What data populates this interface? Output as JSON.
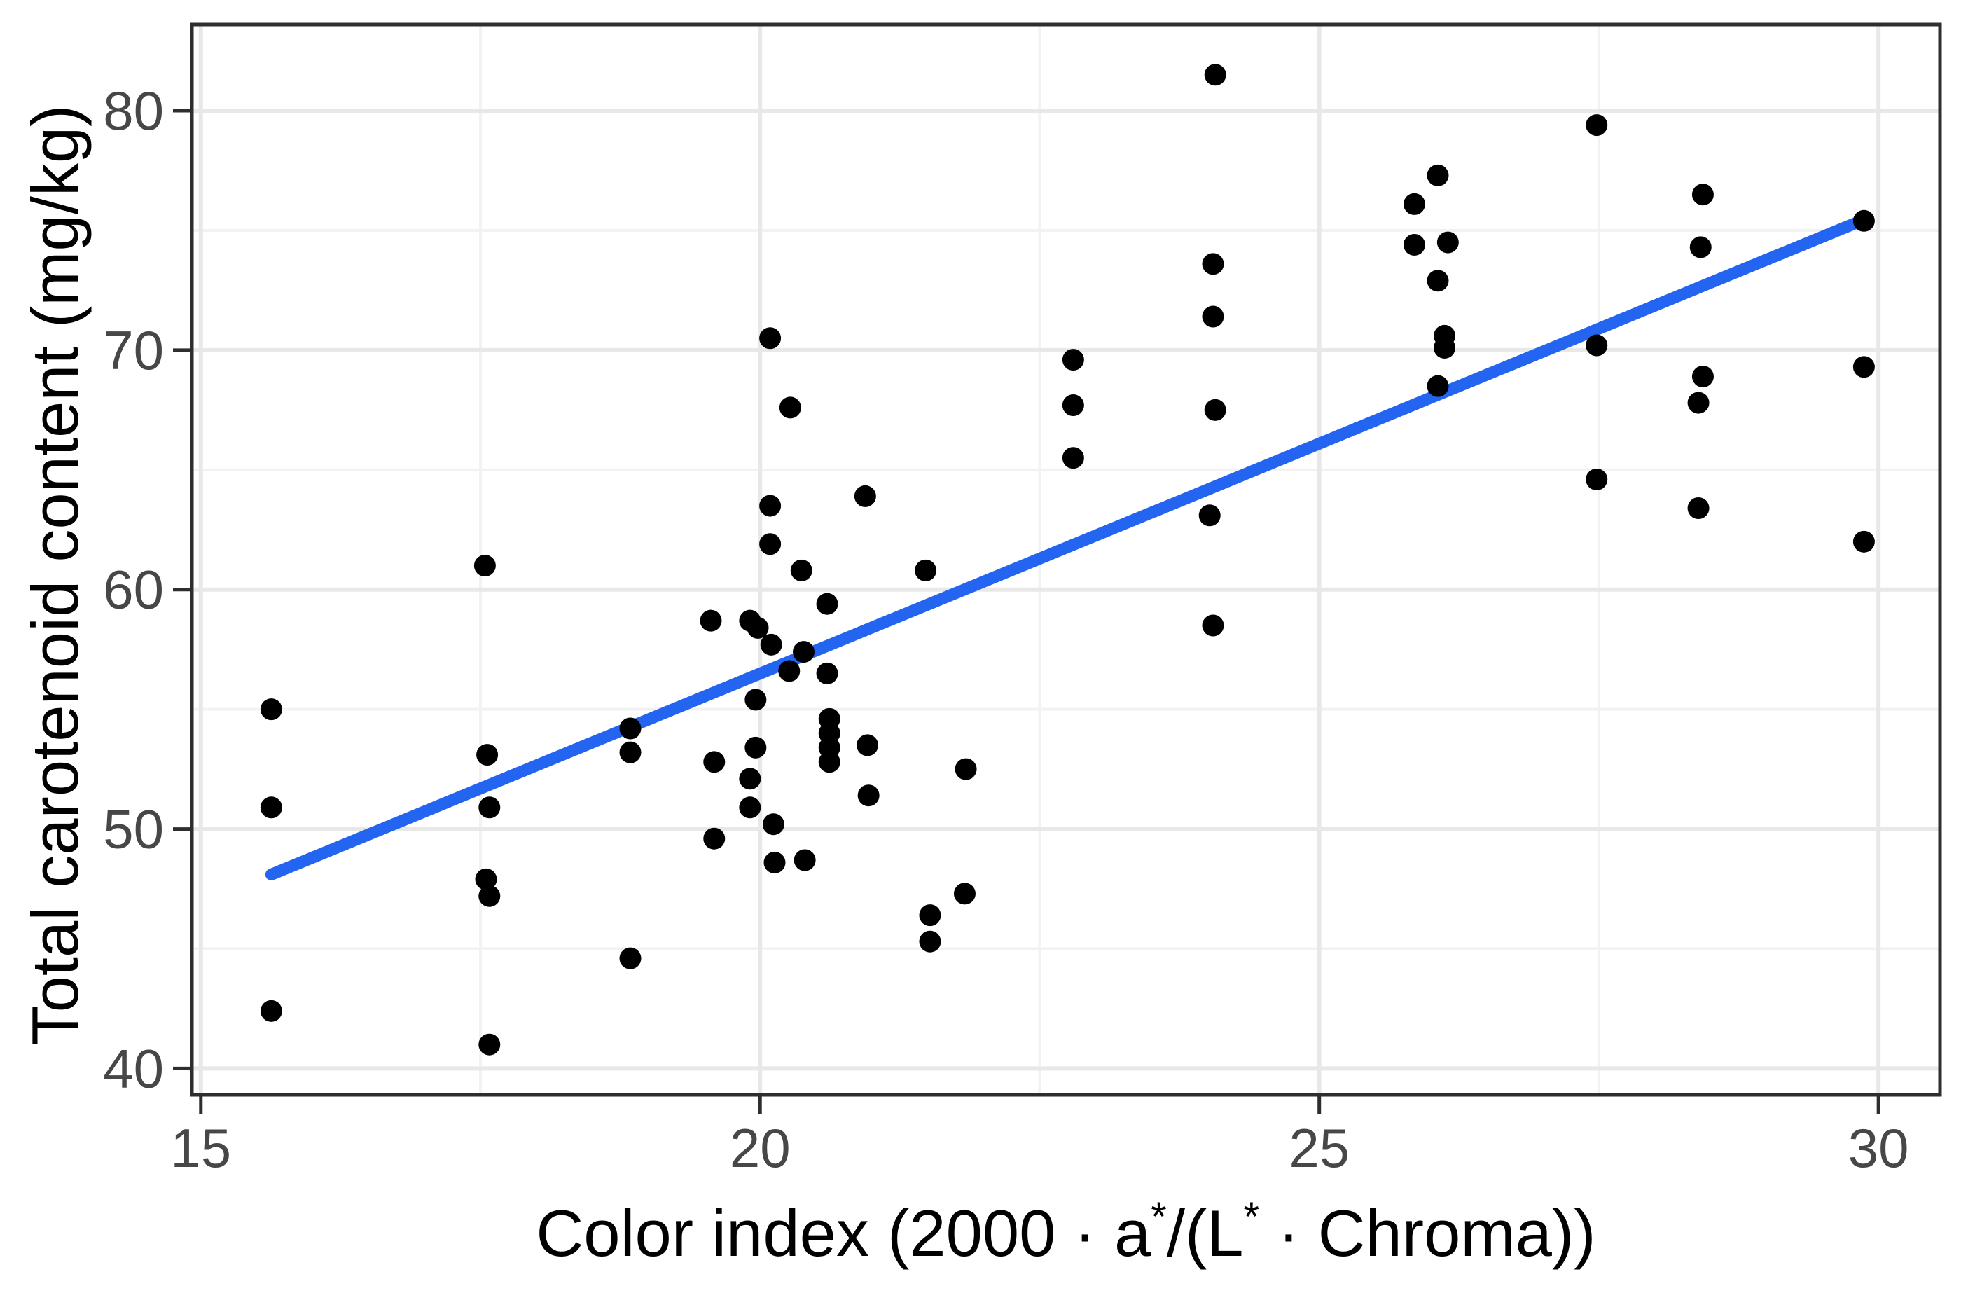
{
  "figure": {
    "background": "#ffffff",
    "panel_border_color": "#2e2e2e",
    "grid_major_color": "#e8e8e8",
    "grid_minor_color": "#f2f2f2",
    "tick_mark_color": "#2e2e2e",
    "tick_label_color": "#474747",
    "point_color": "#000000",
    "trend_line_color": "#2364f0"
  },
  "axes": {
    "x": {
      "title_parts": {
        "p1": "Color index (2000 · a",
        "sup1": "*",
        "p2": "/(L",
        "sup2": "*",
        "p3": " · Chroma))"
      },
      "tick_labels": [
        "15",
        "20",
        "25",
        "30"
      ]
    },
    "y": {
      "title": "Total carotenoid content (mg/kg)",
      "tick_labels": [
        "40",
        "50",
        "60",
        "70",
        "80"
      ]
    }
  },
  "chart_data": {
    "type": "scatter",
    "title": "",
    "xlabel": "Color index (2000 · a*/(L* · Chroma))",
    "ylabel": "Total carotenoid content (mg/kg)",
    "xlim": [
      14.92,
      30.55
    ],
    "ylim": [
      38.9,
      83.6
    ],
    "x_major_ticks": [
      15,
      20,
      25,
      30
    ],
    "x_minor_ticks": [
      17.5,
      22.5,
      27.5
    ],
    "y_major_ticks": [
      40,
      50,
      60,
      70,
      80
    ],
    "y_minor_ticks": [
      45,
      55,
      65,
      75
    ],
    "grid": "major+minor",
    "legend_position": "none",
    "points": [
      [
        15.63,
        55.0
      ],
      [
        15.63,
        50.9
      ],
      [
        15.63,
        42.4
      ],
      [
        17.54,
        61.0
      ],
      [
        17.56,
        53.1
      ],
      [
        17.58,
        50.9
      ],
      [
        17.55,
        47.9
      ],
      [
        17.58,
        47.2
      ],
      [
        17.58,
        41.0
      ],
      [
        18.84,
        54.2
      ],
      [
        18.84,
        53.2
      ],
      [
        18.84,
        44.6
      ],
      [
        19.56,
        58.7
      ],
      [
        19.59,
        52.8
      ],
      [
        19.59,
        49.6
      ],
      [
        19.91,
        58.7
      ],
      [
        19.98,
        58.4
      ],
      [
        19.91,
        52.1
      ],
      [
        19.91,
        50.9
      ],
      [
        19.96,
        55.4
      ],
      [
        19.96,
        53.4
      ],
      [
        20.09,
        70.5
      ],
      [
        20.27,
        67.6
      ],
      [
        20.09,
        63.5
      ],
      [
        20.09,
        61.9
      ],
      [
        20.1,
        57.7
      ],
      [
        20.12,
        50.2
      ],
      [
        20.13,
        48.6
      ],
      [
        20.26,
        56.6
      ],
      [
        20.39,
        57.4
      ],
      [
        20.4,
        48.7
      ],
      [
        20.37,
        60.8
      ],
      [
        20.6,
        59.4
      ],
      [
        20.6,
        56.5
      ],
      [
        20.62,
        54.6
      ],
      [
        20.62,
        54.0
      ],
      [
        20.62,
        53.4
      ],
      [
        20.62,
        52.8
      ],
      [
        20.94,
        63.9
      ],
      [
        20.96,
        53.5
      ],
      [
        20.97,
        51.4
      ],
      [
        21.48,
        60.8
      ],
      [
        21.52,
        46.4
      ],
      [
        21.52,
        45.3
      ],
      [
        21.84,
        52.5
      ],
      [
        21.83,
        47.3
      ],
      [
        22.8,
        69.6
      ],
      [
        22.8,
        67.7
      ],
      [
        22.8,
        65.5
      ],
      [
        24.07,
        81.5
      ],
      [
        24.05,
        73.6
      ],
      [
        24.05,
        71.4
      ],
      [
        24.07,
        67.5
      ],
      [
        24.02,
        63.1
      ],
      [
        24.05,
        58.5
      ],
      [
        25.85,
        76.1
      ],
      [
        25.85,
        74.4
      ],
      [
        26.15,
        74.5
      ],
      [
        26.06,
        77.3
      ],
      [
        26.06,
        72.9
      ],
      [
        26.12,
        70.6
      ],
      [
        26.12,
        70.1
      ],
      [
        26.06,
        68.5
      ],
      [
        27.48,
        79.4
      ],
      [
        27.48,
        70.2
      ],
      [
        27.48,
        64.6
      ],
      [
        28.43,
        76.5
      ],
      [
        28.41,
        74.3
      ],
      [
        28.43,
        68.9
      ],
      [
        28.39,
        67.8
      ],
      [
        28.39,
        63.4
      ],
      [
        29.87,
        75.4
      ],
      [
        29.87,
        69.3
      ],
      [
        29.87,
        62.0
      ]
    ],
    "trend_line": {
      "x1": 15.63,
      "y1": 48.1,
      "x2": 29.87,
      "y2": 75.45
    }
  }
}
